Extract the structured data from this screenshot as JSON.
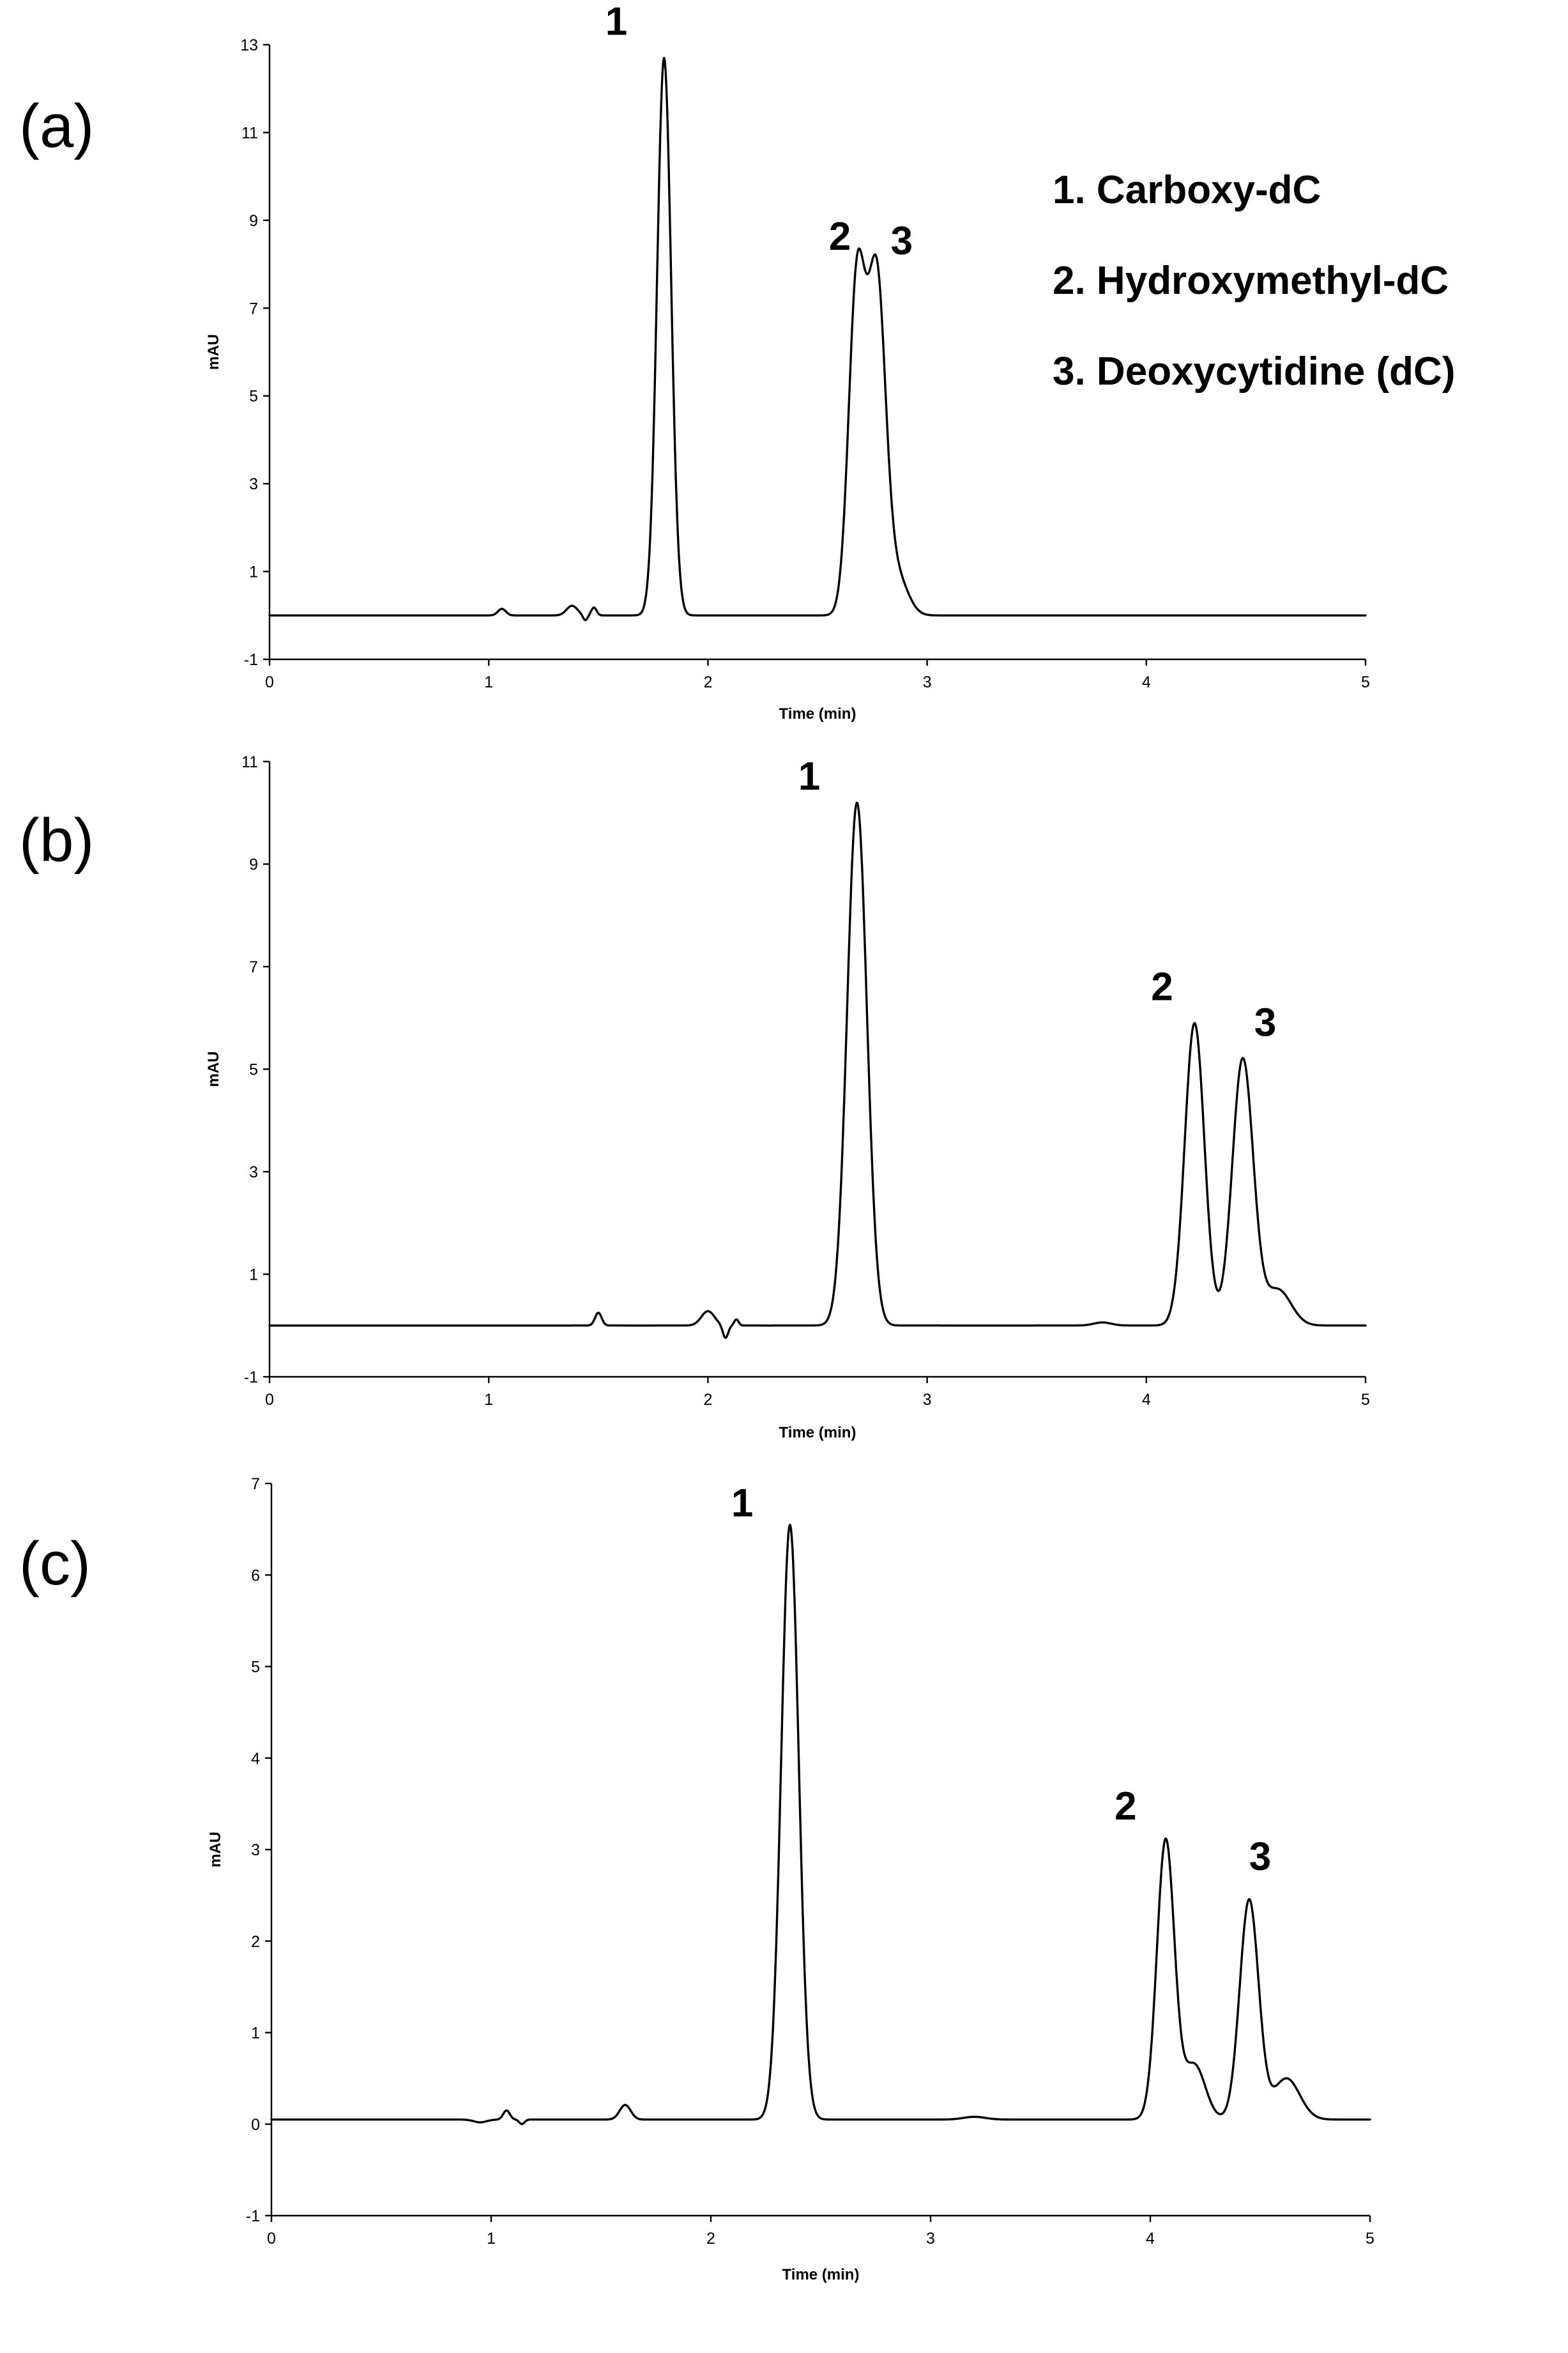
{
  "legend": {
    "items": [
      "1. Carboxy-dC",
      "2. Hydroxymethyl-dC",
      "3. Deoxycytidine (dC)"
    ]
  },
  "chart_data": [
    {
      "type": "line",
      "panel_label": "(a)",
      "xlabel": "Time (min)",
      "ylabel": "mAU",
      "xlim": [
        0,
        5
      ],
      "ylim": [
        -1,
        13
      ],
      "xticks": [
        0,
        1,
        2,
        3,
        4,
        5
      ],
      "yticks": [
        -1,
        1,
        3,
        5,
        7,
        9,
        11,
        13
      ],
      "baseline": 0.0,
      "peaks": [
        {
          "label": "1",
          "time": 1.8,
          "height": 12.7
        },
        {
          "label": "2",
          "time": 2.68,
          "height": 7.6
        },
        {
          "label": "3",
          "time": 2.77,
          "height": 7.5
        }
      ]
    },
    {
      "type": "line",
      "panel_label": "(b)",
      "xlabel": "Time (min)",
      "ylabel": "mAU",
      "xlim": [
        0,
        5
      ],
      "ylim": [
        -1,
        11
      ],
      "xticks": [
        0,
        1,
        2,
        3,
        4,
        5
      ],
      "yticks": [
        -1,
        1,
        3,
        5,
        7,
        9,
        11
      ],
      "baseline": 0.0,
      "peaks": [
        {
          "label": "1",
          "time": 2.68,
          "height": 10.2
        },
        {
          "label": "2",
          "time": 4.22,
          "height": 5.9
        },
        {
          "label": "3",
          "time": 4.44,
          "height": 5.2
        }
      ]
    },
    {
      "type": "line",
      "panel_label": "(c)",
      "xlabel": "Time (min)",
      "ylabel": "mAU",
      "xlim": [
        0,
        5
      ],
      "ylim": [
        -1,
        7
      ],
      "xticks": [
        0,
        1,
        2,
        3,
        4,
        5
      ],
      "yticks": [
        -1,
        0,
        1,
        2,
        3,
        4,
        5,
        6,
        7
      ],
      "baseline": 0.05,
      "peaks": [
        {
          "label": "1",
          "time": 2.36,
          "height": 6.5
        },
        {
          "label": "2",
          "time": 4.07,
          "height": 3.05
        },
        {
          "label": "3",
          "time": 4.45,
          "height": 2.4
        }
      ]
    }
  ]
}
